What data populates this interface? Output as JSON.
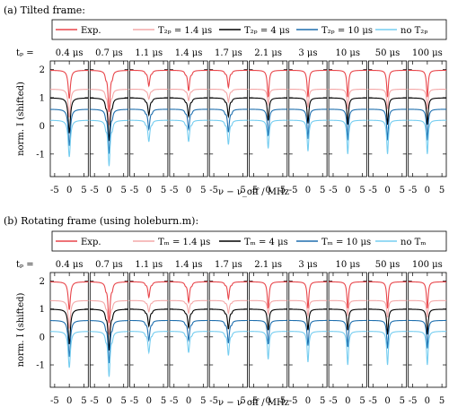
{
  "colors": {
    "exp": "#e8454a",
    "t_short": "#f4a8a8",
    "t_4": "#000000",
    "t_10": "#1f6fae",
    "t_none": "#75cdf0"
  },
  "chart_data": [
    {
      "type": "line",
      "panel_title": "(a) Tilted frame:",
      "legend": [
        {
          "label": "Exp.",
          "color_key": "exp"
        },
        {
          "label": "T₂ₚ = 1.4 μs",
          "color_key": "t_short"
        },
        {
          "label": "T₂ₚ = 4 μs",
          "color_key": "t_4"
        },
        {
          "label": "T₂ₚ = 10 μs",
          "color_key": "t_10"
        },
        {
          "label": "no T₂ₚ",
          "color_key": "t_none"
        }
      ],
      "tp_prefix": "tₚ =",
      "tp_labels": [
        "0.4 μs",
        "0.7 μs",
        "1.1 μs",
        "1.4 μs",
        "1.7 μs",
        "2.1 μs",
        "3 μs",
        "10 μs",
        "50 μs",
        "100 μs"
      ],
      "ylabel": "norm. I (shifted)",
      "xlabel": "ν − ν_off / MHz",
      "xlim": [
        -6.5,
        6.5
      ],
      "ylim": [
        -1.8,
        2.3
      ],
      "xticks": [
        -5,
        0,
        5
      ],
      "yticks": [
        2,
        1,
        0,
        -1
      ],
      "series": [
        {
          "name": "Exp.",
          "color_key": "exp",
          "offset": 1.97,
          "dip_depths": [
            1.0,
            1.45,
            0.55,
            0.72,
            0.6,
            0.95,
            0.95,
            0.95,
            0.95,
            0.95
          ]
        },
        {
          "name": "T₂ₚ = 1.4 μs",
          "color_key": "t_short",
          "offset": 1.3,
          "dip_depths": [
            1.0,
            1.25,
            0.35,
            0.4,
            0.45,
            0.55,
            0.65,
            0.7,
            0.7,
            0.7
          ]
        },
        {
          "name": "T₂ₚ = 4 μs",
          "color_key": "t_4",
          "offset": 0.99,
          "dip_depths": [
            1.25,
            1.5,
            0.6,
            0.65,
            0.65,
            0.8,
            0.9,
            0.95,
            0.95,
            0.95
          ]
        },
        {
          "name": "T₂ₚ = 10 μs",
          "color_key": "t_10",
          "offset": 0.59,
          "dip_depths": [
            1.3,
            1.55,
            0.7,
            0.7,
            0.8,
            0.95,
            1.05,
            1.1,
            1.1,
            1.1
          ]
        },
        {
          "name": "no T₂ₚ",
          "color_key": "t_none",
          "offset": 0.2,
          "dip_depths": [
            1.3,
            1.6,
            0.75,
            0.75,
            0.85,
            1.0,
            1.1,
            1.2,
            1.2,
            1.2
          ]
        }
      ]
    },
    {
      "type": "line",
      "panel_title": "(b) Rotating frame (using holeburn.m):",
      "legend": [
        {
          "label": "Exp.",
          "color_key": "exp"
        },
        {
          "label": "Tₘ = 1.4 μs",
          "color_key": "t_short"
        },
        {
          "label": "Tₘ = 4 μs",
          "color_key": "t_4"
        },
        {
          "label": "Tₘ = 10 μs",
          "color_key": "t_10"
        },
        {
          "label": "no Tₘ",
          "color_key": "t_none"
        }
      ],
      "tp_prefix": "tₚ =",
      "tp_labels": [
        "0.4 μs",
        "0.7 μs",
        "1.1 μs",
        "1.4 μs",
        "1.7 μs",
        "2.1 μs",
        "3 μs",
        "10 μs",
        "50 μs",
        "100 μs"
      ],
      "ylabel": "norm. I (shifted)",
      "xlabel": "ν − ν_off / MHz",
      "xlim": [
        -6.5,
        6.5
      ],
      "ylim": [
        -1.8,
        2.3
      ],
      "xticks": [
        -5,
        0,
        5
      ],
      "yticks": [
        2,
        1,
        0,
        -1
      ],
      "series": [
        {
          "name": "Exp.",
          "color_key": "exp",
          "offset": 1.97,
          "dip_depths": [
            1.0,
            1.45,
            0.55,
            0.72,
            0.6,
            0.95,
            0.95,
            0.95,
            0.95,
            0.95
          ]
        },
        {
          "name": "Tₘ = 1.4 μs",
          "color_key": "t_short",
          "offset": 1.3,
          "dip_depths": [
            1.0,
            1.2,
            0.4,
            0.45,
            0.45,
            0.5,
            0.55,
            0.55,
            0.6,
            0.6
          ]
        },
        {
          "name": "Tₘ = 4 μs",
          "color_key": "t_4",
          "offset": 0.99,
          "dip_depths": [
            1.25,
            1.45,
            0.6,
            0.65,
            0.7,
            0.75,
            0.75,
            0.75,
            0.9,
            0.9
          ]
        },
        {
          "name": "Tₘ = 10 μs",
          "color_key": "t_10",
          "offset": 0.59,
          "dip_depths": [
            1.3,
            1.5,
            0.7,
            0.7,
            0.8,
            0.85,
            0.9,
            0.95,
            1.0,
            1.0
          ]
        },
        {
          "name": "no Tₘ",
          "color_key": "t_none",
          "offset": 0.2,
          "dip_depths": [
            1.3,
            1.6,
            0.75,
            0.75,
            0.85,
            1.0,
            1.1,
            1.2,
            1.2,
            1.2
          ]
        }
      ]
    }
  ]
}
